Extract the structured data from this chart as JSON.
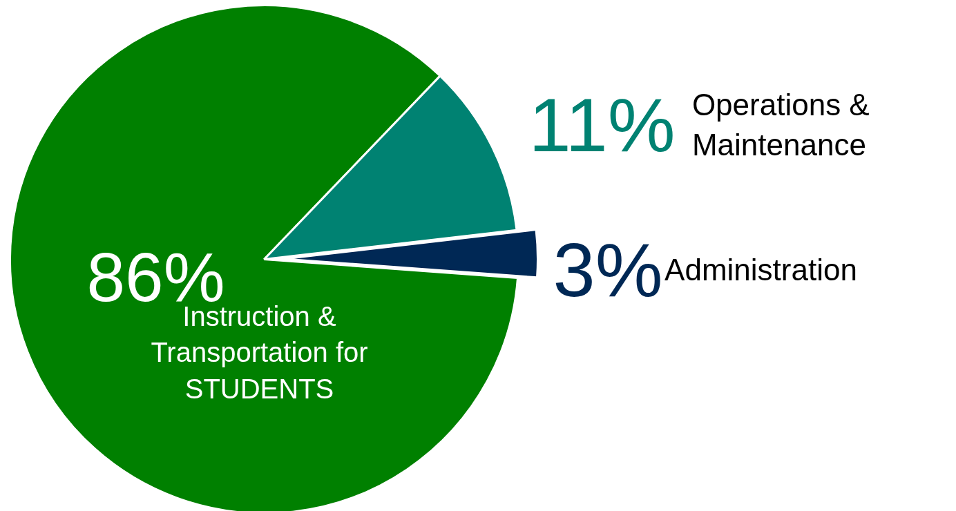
{
  "chart_data": {
    "type": "pie",
    "categories": [
      "Instruction & Transportation for STUDENTS",
      "Operations & Maintenance",
      "Administration"
    ],
    "values": [
      86,
      11,
      3
    ],
    "value_labels": [
      "86%",
      "11%",
      "3%"
    ],
    "colors": [
      "#008000",
      "#008272",
      "#002855"
    ]
  }
}
